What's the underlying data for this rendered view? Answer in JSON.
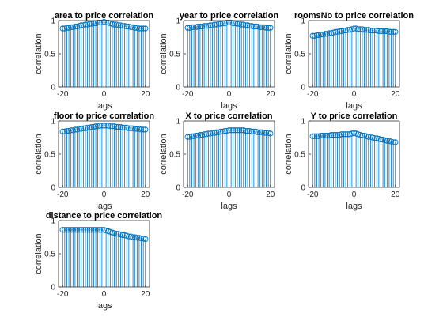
{
  "chart_data": [
    {
      "type": "stem",
      "title": "area to price correlation",
      "xlabel": "lags",
      "ylabel": "correlation",
      "xlim": [
        -22,
        22
      ],
      "ylim": [
        0,
        1
      ],
      "xticks": [
        -20,
        0,
        20
      ],
      "yticks": [
        0,
        0.5,
        1
      ],
      "yticklabels": [
        "0",
        "0.5",
        "1"
      ],
      "x": [
        -20,
        -19,
        -18,
        -17,
        -16,
        -15,
        -14,
        -13,
        -12,
        -11,
        -10,
        -9,
        -8,
        -7,
        -6,
        -5,
        -4,
        -3,
        -2,
        -1,
        0,
        1,
        2,
        3,
        4,
        5,
        6,
        7,
        8,
        9,
        10,
        11,
        12,
        13,
        14,
        15,
        16,
        17,
        18,
        19,
        20
      ],
      "values": [
        0.88,
        0.88,
        0.89,
        0.89,
        0.9,
        0.9,
        0.91,
        0.91,
        0.92,
        0.93,
        0.93,
        0.94,
        0.94,
        0.95,
        0.95,
        0.96,
        0.96,
        0.97,
        0.97,
        0.97,
        0.98,
        0.97,
        0.97,
        0.96,
        0.95,
        0.94,
        0.94,
        0.93,
        0.93,
        0.92,
        0.92,
        0.91,
        0.91,
        0.9,
        0.9,
        0.89,
        0.89,
        0.88,
        0.88,
        0.88,
        0.88
      ]
    },
    {
      "type": "stem",
      "title": "year to price correlation",
      "xlabel": "lags",
      "ylabel": "correlation",
      "xlim": [
        -22,
        22
      ],
      "ylim": [
        0,
        1
      ],
      "xticks": [
        -20,
        0,
        20
      ],
      "yticks": [
        0,
        0.5,
        1
      ],
      "yticklabels": [
        "0",
        "0.5",
        "1"
      ],
      "x": [
        -20,
        -19,
        -18,
        -17,
        -16,
        -15,
        -14,
        -13,
        -12,
        -11,
        -10,
        -9,
        -8,
        -7,
        -6,
        -5,
        -4,
        -3,
        -2,
        -1,
        0,
        1,
        2,
        3,
        4,
        5,
        6,
        7,
        8,
        9,
        10,
        11,
        12,
        13,
        14,
        15,
        16,
        17,
        18,
        19,
        20
      ],
      "values": [
        0.89,
        0.89,
        0.9,
        0.9,
        0.9,
        0.91,
        0.91,
        0.91,
        0.92,
        0.92,
        0.92,
        0.93,
        0.93,
        0.94,
        0.94,
        0.95,
        0.95,
        0.96,
        0.96,
        0.97,
        0.97,
        0.97,
        0.96,
        0.96,
        0.95,
        0.95,
        0.94,
        0.94,
        0.93,
        0.93,
        0.92,
        0.92,
        0.91,
        0.91,
        0.91,
        0.9,
        0.9,
        0.9,
        0.89,
        0.89,
        0.89
      ]
    },
    {
      "type": "stem",
      "title": "roomsNo to price correlation",
      "xlabel": "lags",
      "ylabel": "correlation",
      "xlim": [
        -22,
        22
      ],
      "ylim": [
        0,
        1
      ],
      "xticks": [
        -20,
        0,
        20
      ],
      "yticks": [
        0,
        0.5,
        1
      ],
      "yticklabels": [
        "0",
        "0.5",
        "1"
      ],
      "x": [
        -20,
        -19,
        -18,
        -17,
        -16,
        -15,
        -14,
        -13,
        -12,
        -11,
        -10,
        -9,
        -8,
        -7,
        -6,
        -5,
        -4,
        -3,
        -2,
        -1,
        0,
        1,
        2,
        3,
        4,
        5,
        6,
        7,
        8,
        9,
        10,
        11,
        12,
        13,
        14,
        15,
        16,
        17,
        18,
        19,
        20
      ],
      "values": [
        0.77,
        0.77,
        0.78,
        0.78,
        0.79,
        0.79,
        0.8,
        0.8,
        0.81,
        0.81,
        0.82,
        0.83,
        0.83,
        0.84,
        0.84,
        0.85,
        0.85,
        0.86,
        0.86,
        0.87,
        0.88,
        0.88,
        0.87,
        0.87,
        0.87,
        0.86,
        0.86,
        0.86,
        0.85,
        0.85,
        0.85,
        0.85,
        0.84,
        0.84,
        0.84,
        0.84,
        0.84,
        0.83,
        0.83,
        0.83,
        0.83
      ]
    },
    {
      "type": "stem",
      "title": "floor to price correlation",
      "xlabel": "lags",
      "ylabel": "correlation",
      "xlim": [
        -22,
        22
      ],
      "ylim": [
        0,
        1
      ],
      "xticks": [
        -20,
        0,
        20
      ],
      "yticks": [
        0,
        0.5,
        1
      ],
      "yticklabels": [
        "0",
        "0.5",
        "1"
      ],
      "x": [
        -20,
        -19,
        -18,
        -17,
        -16,
        -15,
        -14,
        -13,
        -12,
        -11,
        -10,
        -9,
        -8,
        -7,
        -6,
        -5,
        -4,
        -3,
        -2,
        -1,
        0,
        1,
        2,
        3,
        4,
        5,
        6,
        7,
        8,
        9,
        10,
        11,
        12,
        13,
        14,
        15,
        16,
        17,
        18,
        19,
        20
      ],
      "values": [
        0.84,
        0.84,
        0.85,
        0.85,
        0.86,
        0.86,
        0.87,
        0.87,
        0.88,
        0.88,
        0.89,
        0.89,
        0.9,
        0.9,
        0.91,
        0.91,
        0.92,
        0.92,
        0.93,
        0.93,
        0.93,
        0.93,
        0.93,
        0.92,
        0.92,
        0.92,
        0.91,
        0.91,
        0.91,
        0.9,
        0.9,
        0.9,
        0.89,
        0.89,
        0.89,
        0.88,
        0.88,
        0.88,
        0.87,
        0.87,
        0.87
      ]
    },
    {
      "type": "stem",
      "title": "X to price correlation",
      "xlabel": "lags",
      "ylabel": "correlation",
      "xlim": [
        -22,
        22
      ],
      "ylim": [
        0,
        1
      ],
      "xticks": [
        -20,
        0,
        20
      ],
      "yticks": [
        0,
        0.5,
        1
      ],
      "yticklabels": [
        "0",
        "0.5",
        "1"
      ],
      "x": [
        -20,
        -19,
        -18,
        -17,
        -16,
        -15,
        -14,
        -13,
        -12,
        -11,
        -10,
        -9,
        -8,
        -7,
        -6,
        -5,
        -4,
        -3,
        -2,
        -1,
        0,
        1,
        2,
        3,
        4,
        5,
        6,
        7,
        8,
        9,
        10,
        11,
        12,
        13,
        14,
        15,
        16,
        17,
        18,
        19,
        20
      ],
      "values": [
        0.76,
        0.76,
        0.77,
        0.77,
        0.78,
        0.78,
        0.79,
        0.79,
        0.8,
        0.8,
        0.81,
        0.81,
        0.82,
        0.82,
        0.83,
        0.83,
        0.84,
        0.84,
        0.85,
        0.85,
        0.86,
        0.86,
        0.86,
        0.86,
        0.86,
        0.86,
        0.86,
        0.86,
        0.85,
        0.85,
        0.85,
        0.84,
        0.84,
        0.84,
        0.83,
        0.83,
        0.83,
        0.82,
        0.82,
        0.82,
        0.81
      ]
    },
    {
      "type": "stem",
      "title": "Y to price correlation",
      "xlabel": "lags",
      "ylabel": "correlation",
      "xlim": [
        -22,
        22
      ],
      "ylim": [
        0,
        1
      ],
      "xticks": [
        -20,
        0,
        20
      ],
      "yticks": [
        0,
        0.5,
        1
      ],
      "yticklabels": [
        "0",
        "0.5",
        "1"
      ],
      "x": [
        -20,
        -19,
        -18,
        -17,
        -16,
        -15,
        -14,
        -13,
        -12,
        -11,
        -10,
        -9,
        -8,
        -7,
        -6,
        -5,
        -4,
        -3,
        -2,
        -1,
        0,
        1,
        2,
        3,
        4,
        5,
        6,
        7,
        8,
        9,
        10,
        11,
        12,
        13,
        14,
        15,
        16,
        17,
        18,
        19,
        20
      ],
      "values": [
        0.77,
        0.77,
        0.77,
        0.77,
        0.78,
        0.78,
        0.78,
        0.78,
        0.78,
        0.79,
        0.79,
        0.79,
        0.79,
        0.79,
        0.8,
        0.8,
        0.8,
        0.8,
        0.8,
        0.81,
        0.82,
        0.81,
        0.8,
        0.79,
        0.78,
        0.78,
        0.77,
        0.76,
        0.76,
        0.75,
        0.74,
        0.74,
        0.73,
        0.72,
        0.72,
        0.71,
        0.7,
        0.7,
        0.69,
        0.68,
        0.68
      ]
    },
    {
      "type": "stem",
      "title": "distance to price correlation",
      "xlabel": "lags",
      "ylabel": "correlation",
      "xlim": [
        -22,
        22
      ],
      "ylim": [
        0,
        1
      ],
      "xticks": [
        -20,
        0,
        20
      ],
      "yticks": [
        0,
        0.5,
        1
      ],
      "yticklabels": [
        "0",
        "0.5",
        "1"
      ],
      "x": [
        -20,
        -19,
        -18,
        -17,
        -16,
        -15,
        -14,
        -13,
        -12,
        -11,
        -10,
        -9,
        -8,
        -7,
        -6,
        -5,
        -4,
        -3,
        -2,
        -1,
        0,
        1,
        2,
        3,
        4,
        5,
        6,
        7,
        8,
        9,
        10,
        11,
        12,
        13,
        14,
        15,
        16,
        17,
        18,
        19,
        20
      ],
      "values": [
        0.86,
        0.86,
        0.86,
        0.86,
        0.86,
        0.86,
        0.86,
        0.86,
        0.86,
        0.86,
        0.86,
        0.86,
        0.86,
        0.86,
        0.86,
        0.86,
        0.86,
        0.86,
        0.86,
        0.86,
        0.86,
        0.85,
        0.84,
        0.83,
        0.82,
        0.81,
        0.8,
        0.8,
        0.79,
        0.78,
        0.78,
        0.77,
        0.76,
        0.76,
        0.75,
        0.75,
        0.74,
        0.74,
        0.73,
        0.73,
        0.72
      ]
    }
  ],
  "colors": {
    "stem": "#0072BD",
    "axes": "#262626",
    "background": "#ffffff"
  }
}
